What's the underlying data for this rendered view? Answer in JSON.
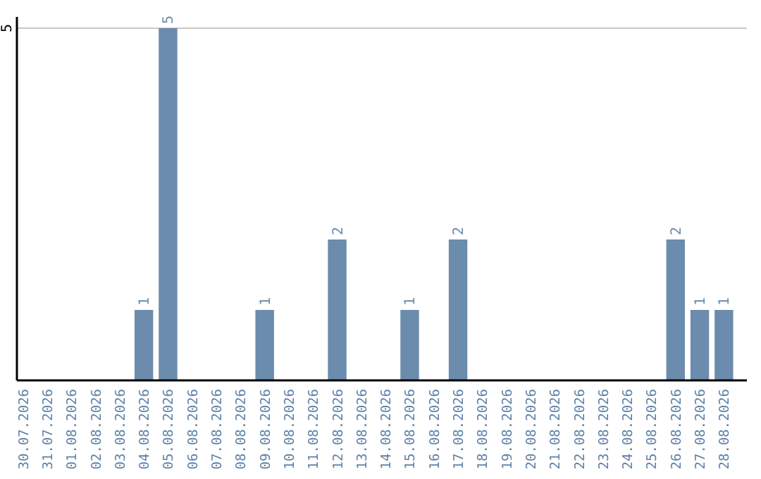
{
  "chart_data": {
    "type": "bar",
    "categories": [
      "30.07.2026",
      "31.07.2026",
      "01.08.2026",
      "02.08.2026",
      "03.08.2026",
      "04.08.2026",
      "05.08.2026",
      "06.08.2026",
      "07.08.2026",
      "08.08.2026",
      "09.08.2026",
      "10.08.2026",
      "11.08.2026",
      "12.08.2026",
      "13.08.2026",
      "14.08.2026",
      "15.08.2026",
      "16.08.2026",
      "17.08.2026",
      "18.08.2026",
      "19.08.2026",
      "20.08.2026",
      "21.08.2026",
      "22.08.2026",
      "23.08.2026",
      "24.08.2026",
      "25.08.2026",
      "26.08.2026",
      "27.08.2026",
      "28.08.2026"
    ],
    "values": [
      0,
      0,
      0,
      0,
      0,
      1,
      5,
      0,
      0,
      0,
      1,
      0,
      0,
      2,
      0,
      0,
      1,
      0,
      2,
      0,
      0,
      0,
      0,
      0,
      0,
      0,
      0,
      2,
      1,
      1
    ],
    "value_labels": [
      null,
      null,
      null,
      null,
      null,
      "1",
      "5",
      null,
      null,
      null,
      "1",
      null,
      null,
      "2",
      null,
      null,
      "1",
      null,
      "2",
      null,
      null,
      null,
      null,
      null,
      null,
      null,
      null,
      "2",
      "1",
      "1"
    ],
    "color": "#6b8cac",
    "ylim": [
      0,
      5
    ],
    "yticks": [
      5
    ],
    "ref_lines": [
      {
        "axis": "y",
        "value": 5,
        "color": "#c8c8c8"
      }
    ]
  }
}
